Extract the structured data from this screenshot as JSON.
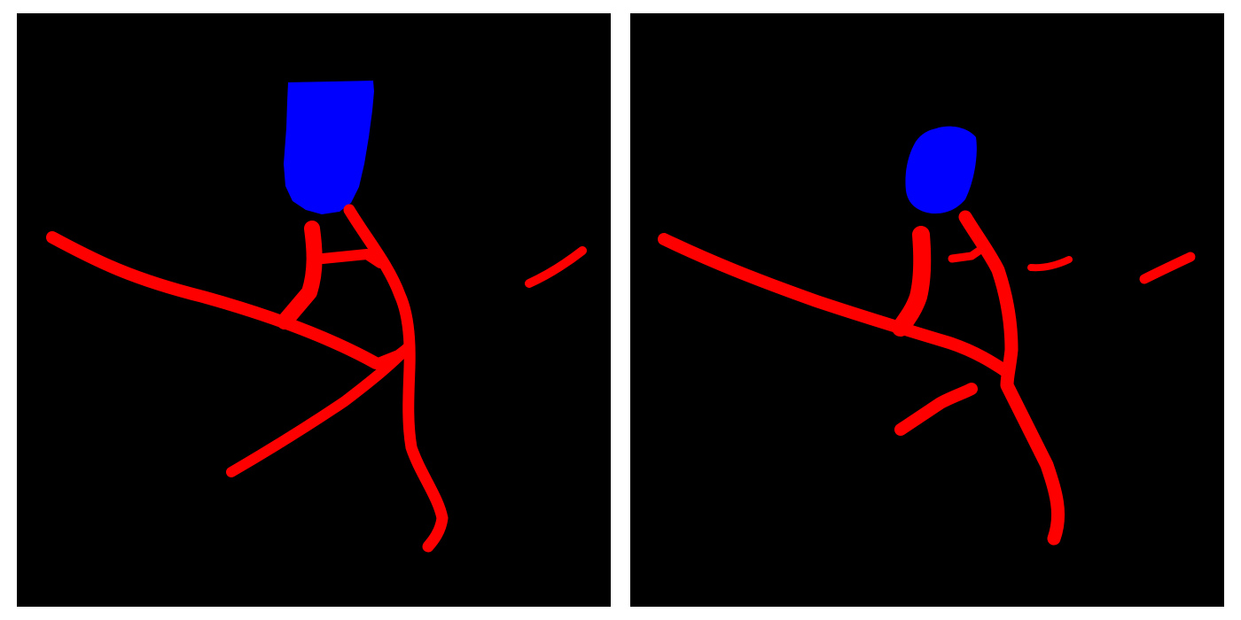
{
  "figure": {
    "panels": [
      {
        "id": "left",
        "classes": [
          {
            "name": "blue-region",
            "color": "#0000ff"
          },
          {
            "name": "red-vessels",
            "color": "#ff0000"
          }
        ]
      },
      {
        "id": "right",
        "classes": [
          {
            "name": "blue-region",
            "color": "#0000ff"
          },
          {
            "name": "red-vessels",
            "color": "#ff0000"
          }
        ]
      }
    ],
    "background_color": "#000000",
    "page_color": "#ffffff"
  }
}
